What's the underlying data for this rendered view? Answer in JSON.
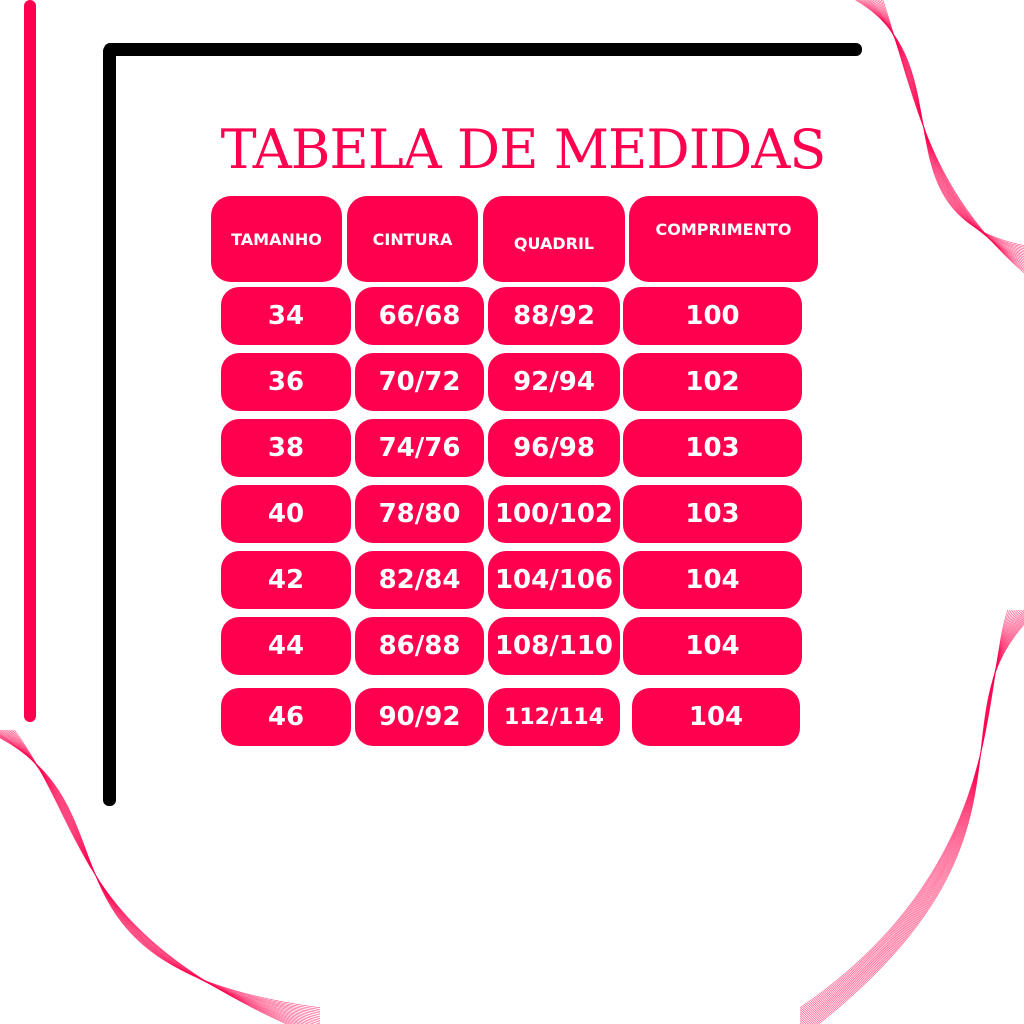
{
  "title": "TABELA DE MEDIDAS",
  "colors": {
    "accent": "#ff004f",
    "frame": "#000000",
    "text": "#ffffff"
  },
  "table": {
    "headers": [
      "TAMANHO",
      "CINTURA",
      "QUADRIL",
      "COMPRIMENTO"
    ],
    "rows": [
      [
        "34",
        "66/68",
        "88/92",
        "100"
      ],
      [
        "36",
        "70/72",
        "92/94",
        "102"
      ],
      [
        "38",
        "74/76",
        "96/98",
        "103"
      ],
      [
        "40",
        "78/80",
        "100/102",
        "103"
      ],
      [
        "42",
        "82/84",
        "104/106",
        "104"
      ],
      [
        "44",
        "86/88",
        "108/110",
        "104"
      ],
      [
        "46",
        "90/92",
        "112/114",
        "104"
      ]
    ]
  }
}
